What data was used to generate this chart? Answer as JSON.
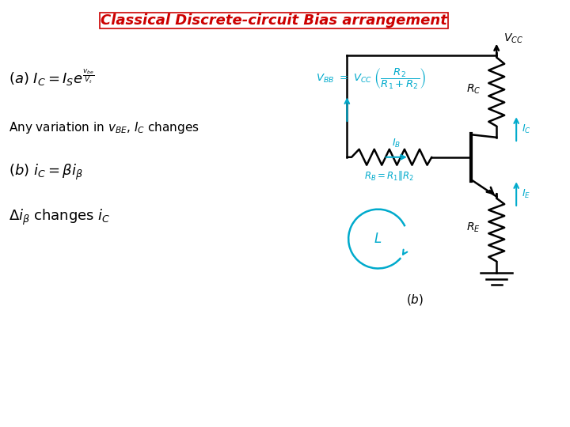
{
  "title": "Classical Discrete-circuit Bias arrangement",
  "title_color": "#CC0000",
  "bg_color": "#FFFFFF",
  "circuit_color": "#000000",
  "cyan_color": "#00AACC",
  "fig_width": 7.2,
  "fig_height": 5.4,
  "dpi": 100
}
